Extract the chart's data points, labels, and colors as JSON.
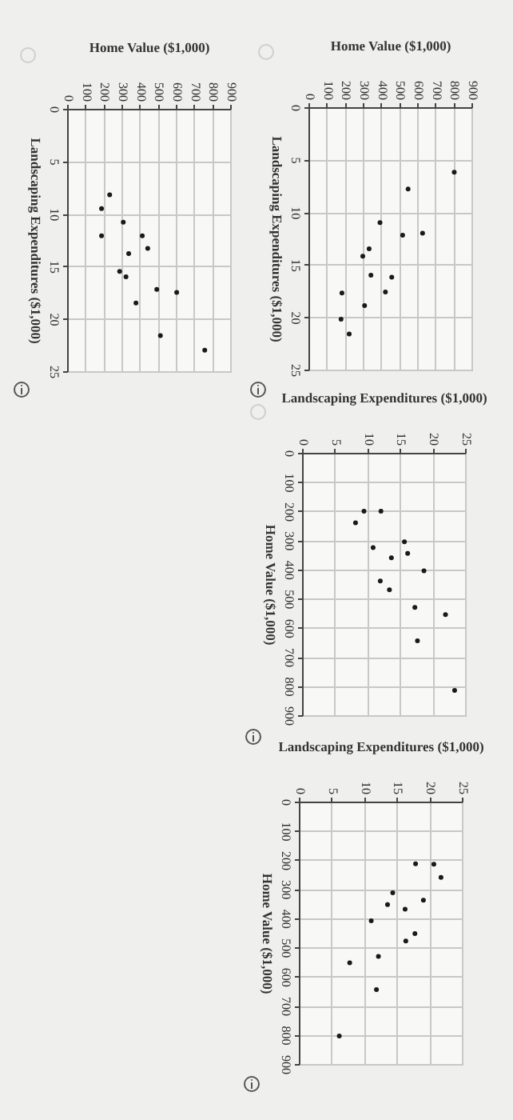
{
  "chart_data": [
    {
      "type": "scatter",
      "xlabel": "Home Value ($1,000)",
      "ylabel": "Landscaping Expenditures ($1,000)",
      "xlim": [
        0,
        900
      ],
      "xticks": [
        0,
        100,
        200,
        300,
        400,
        500,
        600,
        700,
        800,
        900
      ],
      "ylim": [
        25,
        0
      ],
      "yticks": [
        0,
        5,
        10,
        15,
        20,
        25
      ],
      "grid": true,
      "marker": "circle",
      "series": [
        {
          "color": "#1a1a1a",
          "x": [
            805,
            550,
            395,
            520,
            630,
            335,
            300,
            345,
            460,
            425,
            185,
            310,
            180,
            225
          ],
          "values": [
            6.2,
            7.8,
            11,
            12.2,
            12,
            13.5,
            14.2,
            16,
            16.2,
            17.6,
            17.7,
            18.9,
            20.2,
            21.6
          ]
        }
      ]
    },
    {
      "type": "scatter",
      "xlabel": "Landscaping Expenditures ($1,000)",
      "ylabel": "Home Value ($1,000)",
      "xlim": [
        0,
        25
      ],
      "xticks": [
        0,
        5,
        10,
        15,
        20,
        25
      ],
      "ylim": [
        900,
        0
      ],
      "yticks": [
        0,
        100,
        200,
        300,
        400,
        500,
        600,
        700,
        800,
        900
      ],
      "grid": true,
      "marker": "circle",
      "series": [
        {
          "color": "#1a1a1a",
          "x": [
            9.5,
            12.1,
            8.2,
            10.9,
            15.7,
            16.2,
            13.7,
            18.7,
            12,
            13.4,
            17.3,
            22,
            17.7,
            23.4
          ],
          "values": [
            200,
            200,
            240,
            325,
            305,
            345,
            360,
            405,
            440,
            470,
            530,
            555,
            645,
            815
          ]
        }
      ]
    },
    {
      "type": "scatter",
      "xlabel": "Landscaping Expenditures ($1,000)",
      "ylabel": "Home Value ($1,000)",
      "xlim": [
        0,
        25
      ],
      "xticks": [
        0,
        5,
        10,
        15,
        20,
        25
      ],
      "ylim": [
        900,
        0
      ],
      "yticks": [
        0,
        100,
        200,
        300,
        400,
        500,
        600,
        700,
        800,
        900
      ],
      "grid": true,
      "marker": "circle",
      "series": [
        {
          "color": "#1a1a1a",
          "x": [
            17.9,
            20.7,
            21.8,
            14.4,
            19.1,
            13.6,
            16.3,
            11.1,
            17.8,
            16.4,
            12.2,
            7.8,
            11.9,
            6.2
          ],
          "values": [
            213,
            215,
            260,
            313,
            338,
            353,
            369,
            409,
            453,
            478,
            531,
            553,
            645,
            804
          ]
        }
      ]
    },
    {
      "type": "scatter",
      "xlabel": "Home Value ($1,000)",
      "ylabel": "Landscaping Expenditures ($1,000)",
      "xlim": [
        0,
        900
      ],
      "xticks": [
        0,
        100,
        200,
        300,
        400,
        500,
        600,
        700,
        800,
        900
      ],
      "ylim": [
        25,
        0
      ],
      "yticks": [
        0,
        5,
        10,
        15,
        20,
        25
      ],
      "grid": true,
      "marker": "circle",
      "series": [
        {
          "color": "#1a1a1a",
          "x": [
            235,
            190,
            310,
            190,
            415,
            445,
            340,
            290,
            325,
            495,
            605,
            380,
            515,
            760
          ],
          "values": [
            8.2,
            9.5,
            10.8,
            12.1,
            12.1,
            13.3,
            13.8,
            15.5,
            16,
            17.2,
            17.5,
            18.5,
            21.6,
            23
          ]
        }
      ]
    }
  ]
}
